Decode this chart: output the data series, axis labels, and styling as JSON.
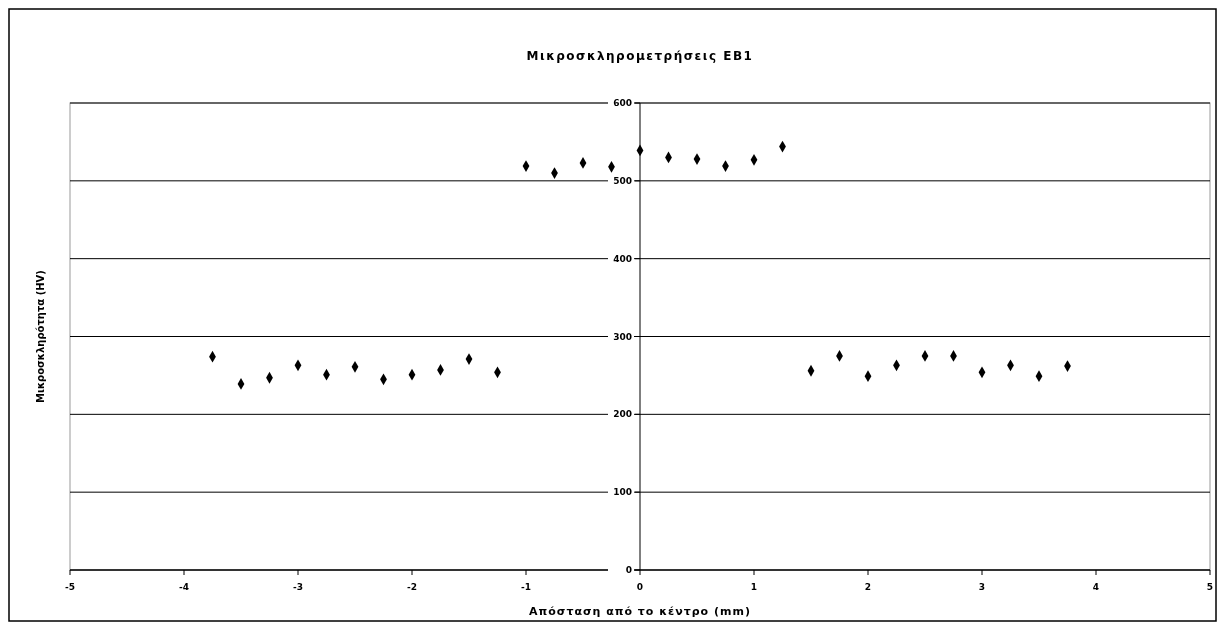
{
  "chart_data": {
    "type": "scatter",
    "title": "Μικροσκληρομετρήσεις ΕΒ1",
    "xlabel": "Απόσταση από το κέντρο (mm)",
    "ylabel": "Μικροσκληρότητα (HV)",
    "x": [
      -3.75,
      -3.5,
      -3.25,
      -3,
      -2.75,
      -2.5,
      -2.25,
      -2,
      -1.75,
      -1.5,
      -1.25,
      -1,
      -0.75,
      -0.5,
      -0.25,
      0,
      0.25,
      0.5,
      0.75,
      1,
      1.25,
      1.5,
      1.75,
      2,
      2.25,
      2.5,
      2.75,
      3,
      3.25,
      3.5,
      3.75
    ],
    "series": [
      {
        "color": "#000000",
        "values": [
          274,
          239,
          247,
          263,
          251,
          261,
          245,
          251,
          257,
          271,
          254,
          519,
          510,
          523,
          518,
          539,
          530,
          528,
          519,
          527,
          544,
          256,
          275,
          249,
          263,
          275,
          275,
          254,
          263,
          249,
          262
        ]
      }
    ],
    "xlim": [
      -5,
      5
    ],
    "xticks": [
      -5,
      -4,
      -3,
      -2,
      -1,
      0,
      1,
      2,
      3,
      4,
      5
    ],
    "ylim": [
      0,
      600
    ],
    "yticks": [
      0,
      100,
      200,
      300,
      400,
      500,
      600
    ],
    "grid": "y",
    "marker": "diamond"
  }
}
